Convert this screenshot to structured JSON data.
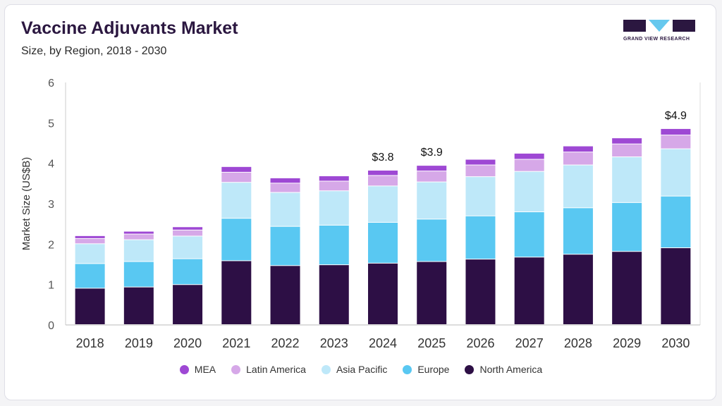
{
  "header": {
    "title": "Vaccine Adjuvants Market",
    "subtitle": "Size, by Region, 2018 - 2030"
  },
  "logo": {
    "text": "GRAND VIEW RESEARCH",
    "colors": {
      "dark": "#2b1740",
      "accent": "#66c8ee"
    }
  },
  "chart_data": {
    "type": "bar",
    "stacked": true,
    "title": "Vaccine Adjuvants Market",
    "subtitle": "Size, by Region, 2018 - 2030",
    "xlabel": "",
    "ylabel": "Market Size (US$B)",
    "ylim": [
      0,
      6
    ],
    "yticks": [
      0,
      1,
      2,
      3,
      4,
      5,
      6
    ],
    "grid": false,
    "legend_position": "bottom",
    "categories": [
      "2018",
      "2019",
      "2020",
      "2021",
      "2022",
      "2023",
      "2024",
      "2025",
      "2026",
      "2027",
      "2028",
      "2029",
      "2030"
    ],
    "series": [
      {
        "name": "North America",
        "color": "#2d0f45",
        "values": [
          0.9,
          0.93,
          0.99,
          1.58,
          1.46,
          1.48,
          1.52,
          1.56,
          1.62,
          1.67,
          1.74,
          1.81,
          1.9
        ]
      },
      {
        "name": "Europe",
        "color": "#59c8f2",
        "values": [
          0.61,
          0.63,
          0.64,
          1.05,
          0.97,
          0.98,
          1.01,
          1.05,
          1.07,
          1.12,
          1.15,
          1.21,
          1.28
        ]
      },
      {
        "name": "Asia Pacific",
        "color": "#bee8f9",
        "values": [
          0.49,
          0.54,
          0.56,
          0.89,
          0.84,
          0.85,
          0.9,
          0.92,
          0.97,
          1.0,
          1.06,
          1.13,
          1.17
        ]
      },
      {
        "name": "Latin America",
        "color": "#d6a8e8",
        "values": [
          0.13,
          0.14,
          0.15,
          0.25,
          0.23,
          0.24,
          0.26,
          0.27,
          0.29,
          0.3,
          0.32,
          0.32,
          0.34
        ]
      },
      {
        "name": "MEA",
        "color": "#9e48d4",
        "values": [
          0.07,
          0.07,
          0.08,
          0.14,
          0.13,
          0.13,
          0.13,
          0.14,
          0.14,
          0.15,
          0.15,
          0.15,
          0.16
        ]
      }
    ],
    "legend_order": [
      "MEA",
      "Latin America",
      "Asia Pacific",
      "Europe",
      "North America"
    ],
    "annotations": [
      {
        "category": "2024",
        "text": "$3.8"
      },
      {
        "category": "2025",
        "text": "$3.9"
      },
      {
        "category": "2030",
        "text": "$4.9"
      }
    ]
  }
}
